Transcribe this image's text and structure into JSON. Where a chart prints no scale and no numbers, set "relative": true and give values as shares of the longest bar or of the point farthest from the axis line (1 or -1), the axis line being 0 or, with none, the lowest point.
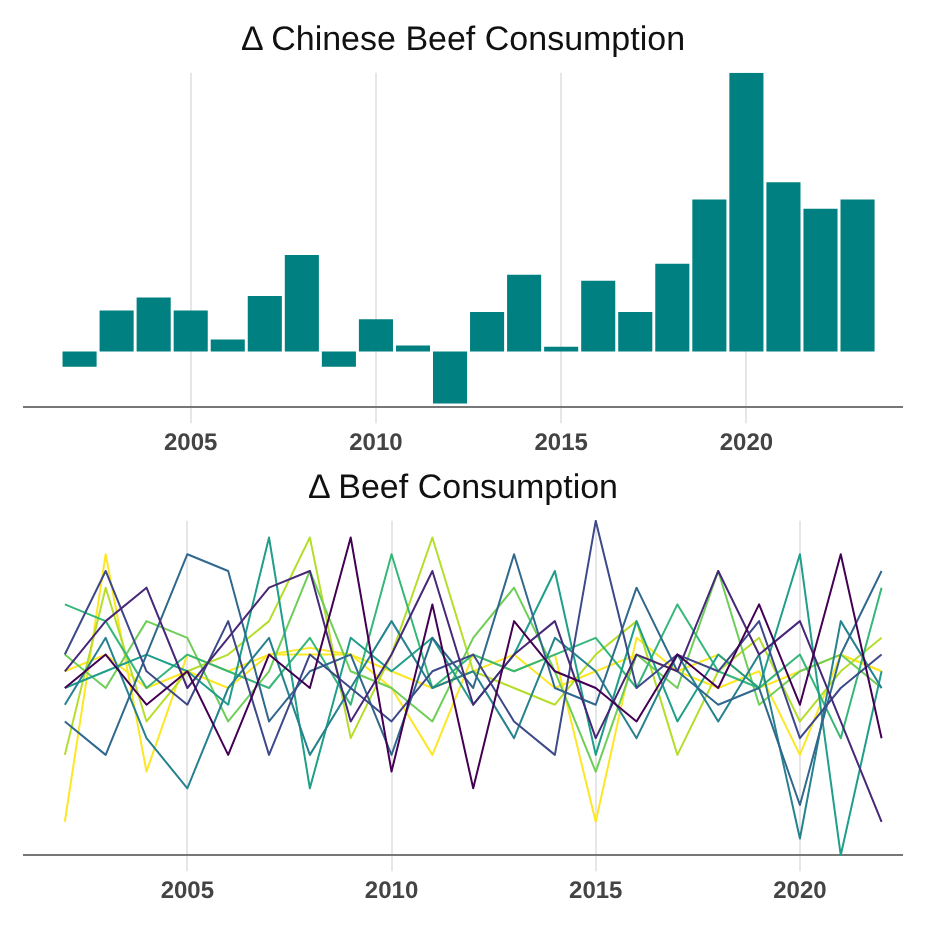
{
  "chart_data": [
    {
      "type": "bar",
      "title": "Δ Chinese Beef Consumption",
      "relative": true,
      "color": "#008080",
      "x": [
        2002,
        2003,
        2004,
        2005,
        2006,
        2007,
        2008,
        2009,
        2010,
        2011,
        2012,
        2013,
        2014,
        2015,
        2016,
        2017,
        2018,
        2019,
        2020,
        2021,
        2022,
        2023
      ],
      "values": [
        -0.055,
        0.147,
        0.194,
        0.147,
        0.043,
        0.199,
        0.346,
        -0.055,
        0.116,
        0.021,
        -0.187,
        0.142,
        0.275,
        0.017,
        0.254,
        0.142,
        0.315,
        0.545,
        1,
        0.607,
        0.512,
        0.545
      ],
      "xlim": [
        2000.5,
        2024.2
      ],
      "xticks": [
        2005,
        2010,
        2015,
        2020
      ],
      "grid": "x"
    },
    {
      "type": "line",
      "title": "Δ Beef Consumption",
      "relative": true,
      "xlim": [
        2001,
        2022.5
      ],
      "xticks": [
        2005,
        2010,
        2015,
        2020
      ],
      "grid": "x",
      "x": [
        2002,
        2003,
        2004,
        2005,
        2006,
        2007,
        2008,
        2009,
        2010,
        2011,
        2012,
        2013,
        2014,
        2015,
        2016,
        2017,
        2018,
        2019,
        2020,
        2021,
        2022
      ],
      "series": [
        {
          "color": "#440154",
          "values": [
            0.5,
            0.6,
            0.45,
            0.55,
            0.3,
            0.6,
            0.5,
            0.95,
            0.25,
            0.75,
            0.2,
            0.7,
            0.55,
            0.5,
            0.4,
            0.6,
            0.5,
            0.75,
            0.45,
            0.9,
            0.35
          ]
        },
        {
          "color": "#482878",
          "values": [
            0.55,
            0.7,
            0.8,
            0.5,
            0.65,
            0.8,
            0.85,
            0.4,
            0.6,
            0.85,
            0.45,
            0.6,
            0.7,
            0.35,
            0.6,
            0.55,
            0.85,
            0.6,
            0.7,
            0.4,
            0.1
          ]
        },
        {
          "color": "#3e4989",
          "values": [
            0.6,
            0.85,
            0.55,
            0.45,
            0.7,
            0.3,
            0.6,
            0.5,
            0.4,
            0.55,
            0.6,
            0.4,
            0.3,
            1.0,
            0.5,
            0.6,
            0.55,
            0.7,
            0.35,
            0.5,
            0.6
          ]
        },
        {
          "color": "#31688e",
          "values": [
            0.4,
            0.3,
            0.6,
            0.9,
            0.85,
            0.4,
            0.55,
            0.6,
            0.3,
            0.65,
            0.5,
            0.9,
            0.5,
            0.45,
            0.8,
            0.55,
            0.45,
            0.5,
            0.15,
            0.6,
            0.85
          ]
        },
        {
          "color": "#26828e",
          "values": [
            0.45,
            0.65,
            0.35,
            0.2,
            0.5,
            0.65,
            0.3,
            0.5,
            0.7,
            0.5,
            0.55,
            0.35,
            0.65,
            0.55,
            0.35,
            0.6,
            0.4,
            0.6,
            0.05,
            0.7,
            0.5
          ]
        },
        {
          "color": "#1f9e89",
          "values": [
            0.5,
            0.55,
            0.6,
            0.55,
            0.45,
            0.95,
            0.2,
            0.65,
            0.55,
            0.65,
            0.45,
            0.6,
            0.85,
            0.3,
            0.7,
            0.4,
            0.6,
            0.5,
            0.9,
            0.0,
            0.55
          ]
        },
        {
          "color": "#35b779",
          "values": [
            0.75,
            0.7,
            0.5,
            0.6,
            0.55,
            0.5,
            0.65,
            0.45,
            0.9,
            0.5,
            0.6,
            0.55,
            0.6,
            0.65,
            0.5,
            0.75,
            0.55,
            0.5,
            0.6,
            0.35,
            0.8
          ]
        },
        {
          "color": "#6ece58",
          "values": [
            0.6,
            0.5,
            0.7,
            0.65,
            0.4,
            0.55,
            0.85,
            0.55,
            0.5,
            0.4,
            0.65,
            0.8,
            0.55,
            0.25,
            0.6,
            0.5,
            0.85,
            0.45,
            0.55,
            0.6,
            0.5
          ]
        },
        {
          "color": "#b5de2b",
          "values": [
            0.3,
            0.8,
            0.4,
            0.55,
            0.6,
            0.7,
            0.95,
            0.35,
            0.6,
            0.95,
            0.55,
            0.5,
            0.45,
            0.6,
            0.7,
            0.3,
            0.55,
            0.65,
            0.4,
            0.55,
            0.65
          ]
        },
        {
          "color": "#fde725",
          "values": [
            0.1,
            0.9,
            0.25,
            0.6,
            0.55,
            0.6,
            0.6,
            0.6,
            0.5,
            0.3,
            0.6,
            0.55,
            0.6,
            0.1,
            0.65,
            0.55,
            0.5,
            0.55,
            0.3,
            0.6,
            0.55
          ]
        },
        {
          "color": "#fde725",
          "values": [
            0.55,
            0.6,
            0.5,
            0.55,
            0.5,
            0.6,
            0.62,
            0.6,
            0.55,
            0.5,
            0.55,
            0.6,
            0.5,
            0.55,
            0.6,
            0.55,
            0.6,
            0.5,
            0.55,
            0.6,
            0.55
          ]
        }
      ]
    }
  ]
}
